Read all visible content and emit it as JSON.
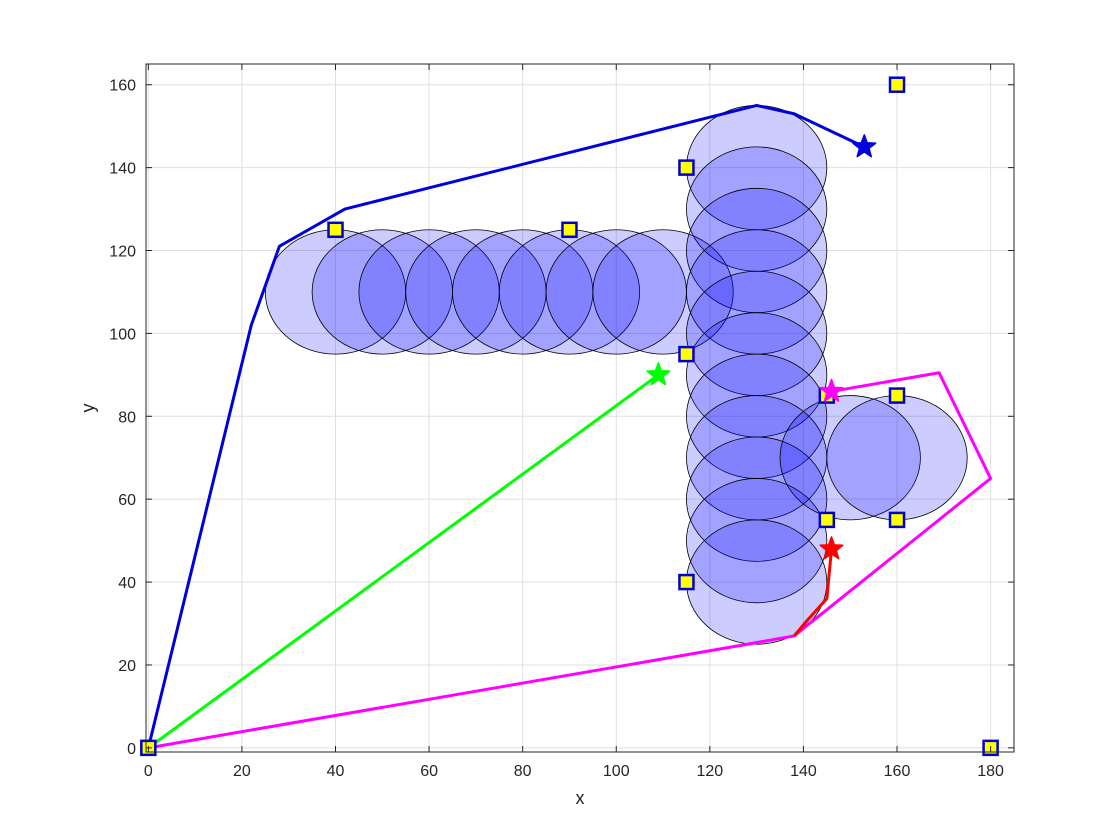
{
  "chart_data": {
    "type": "scatter",
    "title": "",
    "xlabel": "x",
    "ylabel": "y",
    "xlim": [
      -0.5,
      185
    ],
    "ylim": [
      -1,
      165
    ],
    "x_ticks": [
      0,
      20,
      40,
      60,
      80,
      100,
      120,
      140,
      160,
      180
    ],
    "y_ticks": [
      0,
      20,
      40,
      60,
      80,
      100,
      120,
      140,
      160
    ],
    "grid": true,
    "circle_radius": 15,
    "circle_color": "#0000ff",
    "circles": [
      {
        "x": 40,
        "y": 110
      },
      {
        "x": 50,
        "y": 110
      },
      {
        "x": 60,
        "y": 110
      },
      {
        "x": 70,
        "y": 110
      },
      {
        "x": 80,
        "y": 110
      },
      {
        "x": 90,
        "y": 110
      },
      {
        "x": 100,
        "y": 110
      },
      {
        "x": 110,
        "y": 110
      },
      {
        "x": 130,
        "y": 140
      },
      {
        "x": 130,
        "y": 130
      },
      {
        "x": 130,
        "y": 120
      },
      {
        "x": 130,
        "y": 110
      },
      {
        "x": 130,
        "y": 100
      },
      {
        "x": 130,
        "y": 90
      },
      {
        "x": 130,
        "y": 80
      },
      {
        "x": 130,
        "y": 70
      },
      {
        "x": 130,
        "y": 60
      },
      {
        "x": 130,
        "y": 50
      },
      {
        "x": 130,
        "y": 40
      },
      {
        "x": 150,
        "y": 70
      },
      {
        "x": 160,
        "y": 70
      }
    ],
    "squares": [
      {
        "x": 0,
        "y": 0
      },
      {
        "x": 40,
        "y": 125
      },
      {
        "x": 90,
        "y": 125
      },
      {
        "x": 115,
        "y": 140
      },
      {
        "x": 160,
        "y": 160
      },
      {
        "x": 115,
        "y": 95
      },
      {
        "x": 145,
        "y": 85
      },
      {
        "x": 160,
        "y": 85
      },
      {
        "x": 145,
        "y": 55
      },
      {
        "x": 160,
        "y": 55
      },
      {
        "x": 115,
        "y": 40
      },
      {
        "x": 180,
        "y": 0
      }
    ],
    "square_fill": "#ffff00",
    "square_edge": "#0000cc",
    "series": [
      {
        "color": "#0000dd",
        "x": [
          0,
          22,
          28,
          42,
          130,
          138,
          153
        ],
        "y": [
          0,
          102,
          121,
          130,
          155,
          153,
          145
        ],
        "end": {
          "x": 153,
          "y": 145
        }
      },
      {
        "color": "#00ff00",
        "x": [
          0,
          109
        ],
        "y": [
          0,
          90
        ],
        "end": {
          "x": 109,
          "y": 90
        }
      },
      {
        "color": "#ff00ff",
        "x": [
          0,
          128,
          138,
          180,
          169,
          146
        ],
        "y": [
          0,
          25,
          27,
          65,
          90.5,
          86
        ],
        "end": {
          "x": 146,
          "y": 86
        }
      },
      {
        "color": "#ff0000",
        "x": [
          138,
          141,
          145,
          146
        ],
        "y": [
          27,
          31,
          36,
          48
        ],
        "end": {
          "x": 146,
          "y": 48
        }
      }
    ]
  }
}
